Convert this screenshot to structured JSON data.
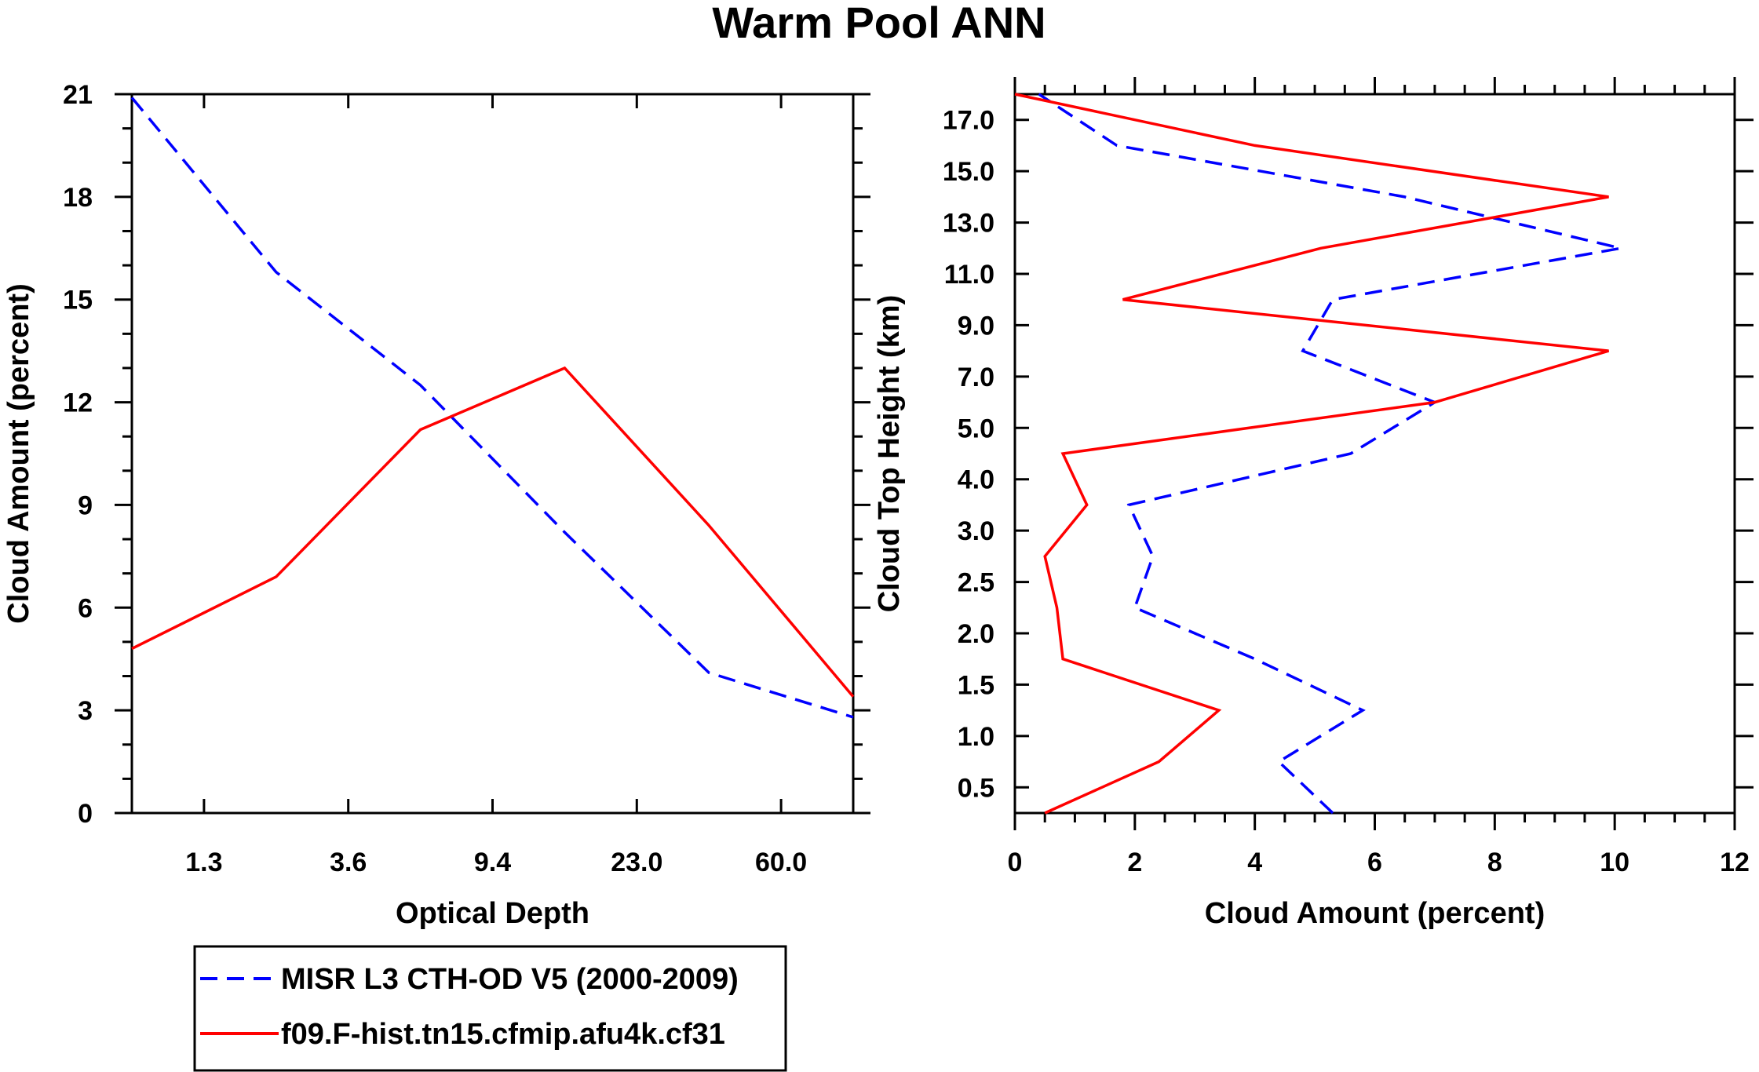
{
  "title": "Warm Pool ANN",
  "colors": {
    "obs": "#0000ff",
    "model": "#ff0000",
    "axis": "#000000"
  },
  "legend": {
    "entries": [
      {
        "label": "MISR L3 CTH-OD V5 (2000-2009)",
        "color": "#0000ff",
        "dash": true
      },
      {
        "label": "f09.F-hist.tn15.cfmip.afu4k.cf31",
        "color": "#ff0000",
        "dash": false
      }
    ]
  },
  "chart_data": [
    {
      "type": "line",
      "xlabel": "Optical Depth",
      "ylabel": "Cloud Amount (percent)",
      "x": [
        0.5,
        1.5,
        2.5,
        3.5,
        4.5,
        5.5
      ],
      "xlim": [
        0,
        5
      ],
      "xticks": [
        0.5,
        1.5,
        2.5,
        3.5,
        4.5
      ],
      "xtick_labels": [
        "1.3",
        "3.6",
        "9.4",
        "23.0",
        "60.0"
      ],
      "ylim": [
        0,
        21
      ],
      "yticks": [
        0,
        3,
        6,
        9,
        12,
        15,
        18,
        21
      ],
      "ytick_labels": [
        "0",
        "3",
        "6",
        "9",
        "12",
        "15",
        "18",
        "21"
      ],
      "series": [
        {
          "name": "MISR L3 CTH-OD V5 (2000-2009)",
          "x": [
            0.0,
            1.0,
            2.0,
            3.0,
            4.0,
            5.0
          ],
          "values": [
            20.9,
            15.8,
            12.5,
            8.2,
            4.1,
            2.8
          ]
        },
        {
          "name": "f09.F-hist.tn15.cfmip.afu4k.cf31",
          "x": [
            0.0,
            1.0,
            2.0,
            3.0,
            4.0,
            5.0
          ],
          "values": [
            4.8,
            6.9,
            11.2,
            13.0,
            8.4,
            3.4
          ]
        }
      ]
    },
    {
      "type": "line",
      "xlabel": "Cloud Amount (percent)",
      "ylabel": "Cloud Top Height (km)",
      "xlim": [
        0,
        12
      ],
      "xticks": [
        0,
        2,
        4,
        6,
        8,
        10,
        12
      ],
      "xtick_labels": [
        "0",
        "2",
        "4",
        "6",
        "8",
        "10",
        "12"
      ],
      "ylim": [
        0,
        14
      ],
      "yticks": [
        0.5,
        1.5,
        2.5,
        3.5,
        4.5,
        5.5,
        6.5,
        7.5,
        8.5,
        9.5,
        10.5,
        11.5,
        12.5,
        13.5
      ],
      "ytick_labels": [
        "0.5",
        "1.0",
        "1.5",
        "2.0",
        "2.5",
        "3.0",
        "4.0",
        "5.0",
        "7.0",
        "9.0",
        "11.0",
        "13.0",
        "15.0",
        "17.0"
      ],
      "series": [
        {
          "name": "MISR L3 CTH-OD V5 (2000-2009)",
          "y": [
            0,
            1,
            2,
            3,
            4,
            5,
            6,
            7,
            8,
            9,
            10,
            11,
            12,
            13,
            14
          ],
          "values": [
            5.3,
            4.4,
            5.8,
            4.0,
            2.0,
            2.3,
            1.9,
            5.6,
            7.0,
            4.8,
            5.3,
            10.1,
            6.5,
            1.7,
            0.4
          ]
        },
        {
          "name": "f09.F-hist.tn15.cfmip.afu4k.cf31",
          "y": [
            0,
            1,
            2,
            3,
            4,
            5,
            6,
            7,
            8,
            9,
            10,
            11,
            12,
            13,
            14
          ],
          "values": [
            0.5,
            2.4,
            3.4,
            0.8,
            0.7,
            0.5,
            1.2,
            0.8,
            7.0,
            9.9,
            1.8,
            5.1,
            9.9,
            4.0,
            0.0
          ]
        }
      ]
    }
  ]
}
